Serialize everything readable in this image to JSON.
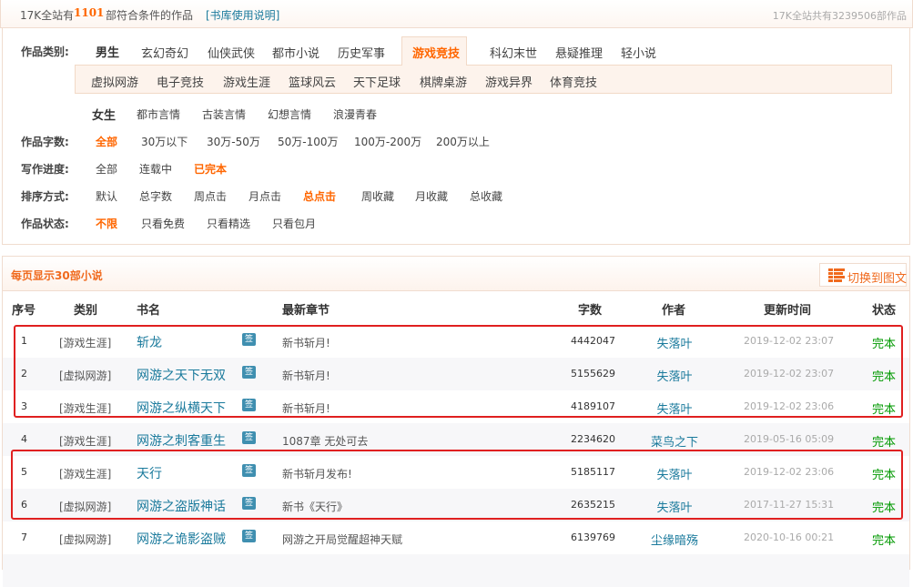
{
  "topbar": {
    "prefix": "17K全站有",
    "count": "1101",
    "suffix": "部符合条件的作品",
    "help_link": "[书库使用说明]",
    "total": "17K全站共有3239506部作品"
  },
  "filters": {
    "category_label": "作品类别:",
    "male_label": "男生",
    "male_items": [
      "玄幻奇幻",
      "仙侠武侠",
      "都市小说",
      "历史军事",
      "游戏竞技",
      "科幻末世",
      "悬疑推理",
      "轻小说"
    ],
    "active_category": "游戏竞技",
    "sub_items": [
      "虚拟网游",
      "电子竞技",
      "游戏生涯",
      "篮球风云",
      "天下足球",
      "棋牌桌游",
      "游戏异界",
      "体育竞技"
    ],
    "female_label": "女生",
    "female_items": [
      "都市言情",
      "古装言情",
      "幻想言情",
      "浪漫青春"
    ],
    "words_label": "作品字数:",
    "words_items": [
      "全部",
      "30万以下",
      "30万-50万",
      "50万-100万",
      "100万-200万",
      "200万以上"
    ],
    "words_selected": "全部",
    "progress_label": "写作进度:",
    "progress_items": [
      "全部",
      "连载中",
      "已完本"
    ],
    "progress_selected": "已完本",
    "sort_label": "排序方式:",
    "sort_items": [
      "默认",
      "总字数",
      "周点击",
      "月点击",
      "总点击",
      "周收藏",
      "月收藏",
      "总收藏"
    ],
    "sort_selected": "总点击",
    "status_label": "作品状态:",
    "status_items": [
      "不限",
      "只看免费",
      "只看精选",
      "只看包月"
    ],
    "status_selected": "不限"
  },
  "list": {
    "title": "每页显示30部小说",
    "switch_button": "切换到图文",
    "headers": [
      "序号",
      "类别",
      "书名",
      "最新章节",
      "字数",
      "作者",
      "更新时间",
      "状态"
    ],
    "sign_badge": "签",
    "rows": [
      {
        "no": "1",
        "cat": "[游戏生涯]",
        "name": "斩龙",
        "latest": "新书斩月!",
        "words": "4442047",
        "author": "失落叶",
        "time": "2019-12-02 23:07",
        "status": "完本"
      },
      {
        "no": "2",
        "cat": "[虚拟网游]",
        "name": "网游之天下无双",
        "latest": "新书斩月!",
        "words": "5155629",
        "author": "失落叶",
        "time": "2019-12-02 23:07",
        "status": "完本"
      },
      {
        "no": "3",
        "cat": "[游戏生涯]",
        "name": "网游之纵横天下",
        "latest": "新书斩月!",
        "words": "4189107",
        "author": "失落叶",
        "time": "2019-12-02 23:06",
        "status": "完本"
      },
      {
        "no": "4",
        "cat": "[游戏生涯]",
        "name": "网游之刺客重生",
        "latest": "1087章 无处可去",
        "words": "2234620",
        "author": "菜鸟之下",
        "time": "2019-05-16 05:09",
        "status": "完本"
      },
      {
        "no": "5",
        "cat": "[游戏生涯]",
        "name": "天行",
        "latest": "新书斩月发布!",
        "words": "5185117",
        "author": "失落叶",
        "time": "2019-12-02 23:06",
        "status": "完本"
      },
      {
        "no": "6",
        "cat": "[虚拟网游]",
        "name": "网游之盗版神话",
        "latest": "新书《天行》",
        "words": "2635215",
        "author": "失落叶",
        "time": "2017-11-27 15:31",
        "status": "完本"
      },
      {
        "no": "7",
        "cat": "[虚拟网游]",
        "name": "网游之诡影盗贼",
        "latest": "网游之开局觉醒超神天赋",
        "words": "6139769",
        "author": "尘缘暗殇",
        "time": "2020-10-16 00:21",
        "status": "完本"
      }
    ]
  },
  "colors": {
    "accent": "#ff6600",
    "link": "#1a7a9c",
    "done": "#009900",
    "highlight_box": "#e02020"
  }
}
